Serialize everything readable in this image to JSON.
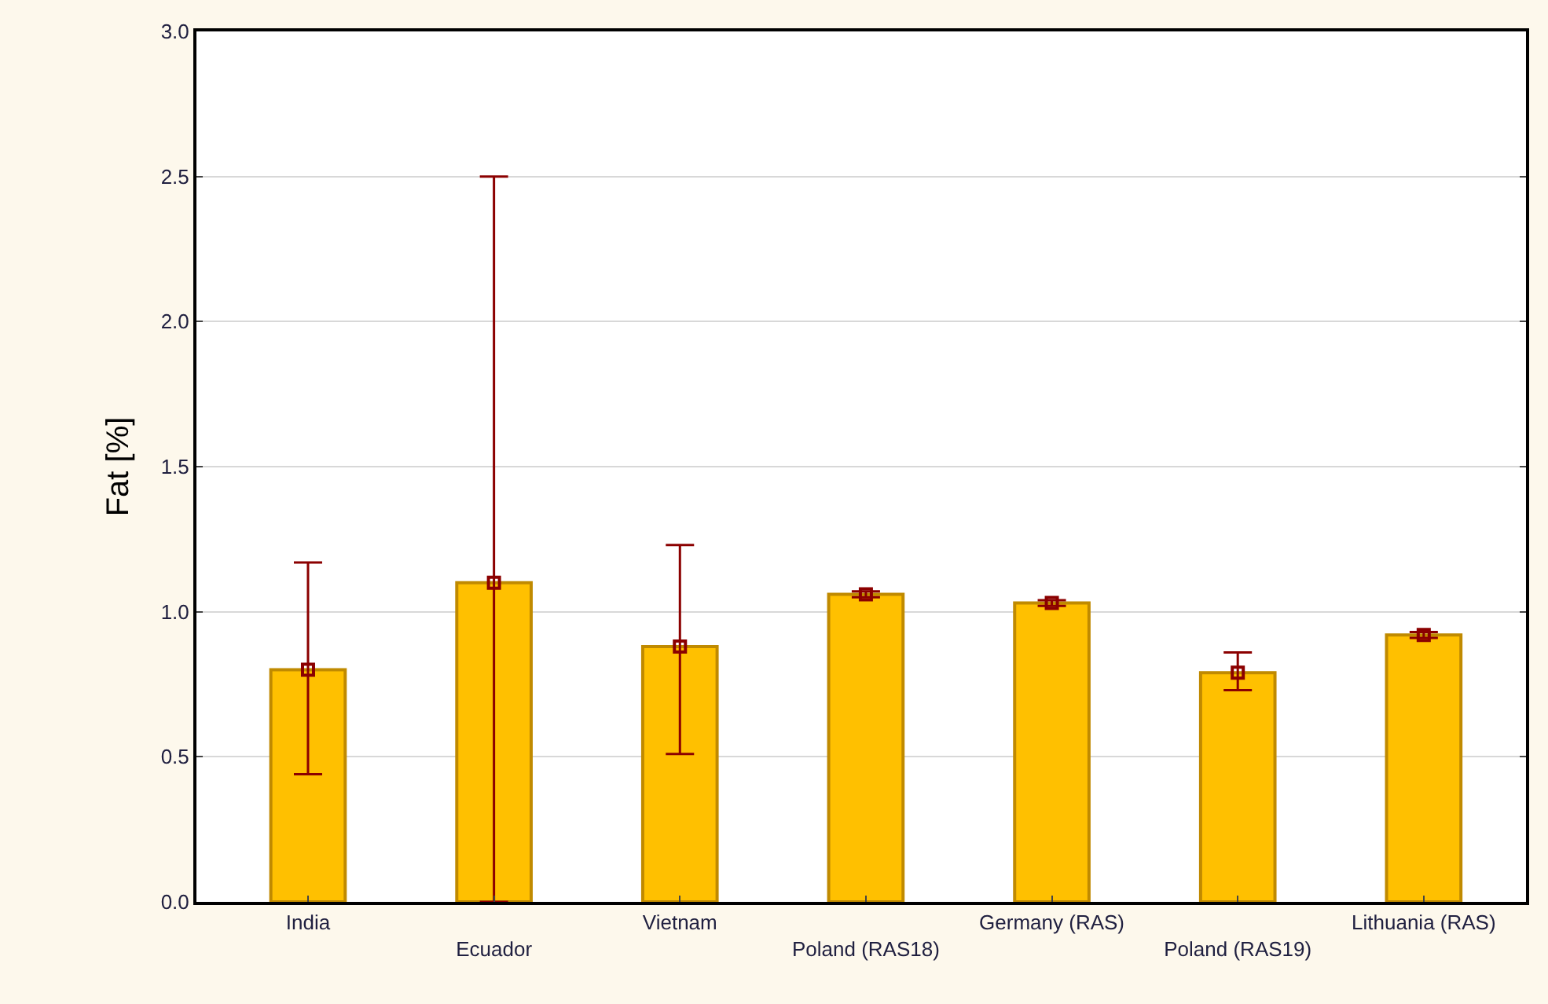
{
  "chart_data": {
    "type": "bar",
    "ylabel": "Fat [%]",
    "categories": [
      "India",
      "Ecuador",
      "Vietnam",
      "Poland (RAS18)",
      "Germany (RAS)",
      "Poland (RAS19)",
      "Lithuania (RAS)"
    ],
    "series": [
      {
        "color": "#ffc000",
        "values": [
          0.8,
          1.1,
          0.88,
          1.06,
          1.03,
          0.79,
          0.92
        ]
      },
      {
        "type": "scatter",
        "color": "#8b0000",
        "marker": "square",
        "x": [
          "India",
          "Ecuador",
          "Vietnam",
          "Poland (RAS18)",
          "Germany (RAS)",
          "Poland (RAS19)",
          "Lithuania (RAS)"
        ],
        "values": [
          0.8,
          1.1,
          0.88,
          1.06,
          1.03,
          0.79,
          0.92
        ],
        "errors": [
          [
            0.44,
            1.17
          ],
          [
            0.0,
            2.5
          ],
          [
            0.51,
            1.23
          ],
          [
            1.05,
            1.07
          ],
          [
            1.02,
            1.04
          ],
          [
            0.73,
            0.86
          ],
          [
            0.91,
            0.93
          ]
        ]
      }
    ],
    "ylim": [
      0,
      3.0
    ],
    "yticks": [
      {
        "value": 0,
        "label": "0.0"
      },
      {
        "value": 0.5,
        "label": "0.5"
      },
      {
        "value": 1,
        "label": "1.0"
      },
      {
        "value": 1.5,
        "label": "1.5"
      },
      {
        "value": 2,
        "label": "2.0"
      },
      {
        "value": 2.5,
        "label": "2.5"
      },
      {
        "value": 3,
        "label": "3.0"
      }
    ],
    "grid": "y"
  }
}
